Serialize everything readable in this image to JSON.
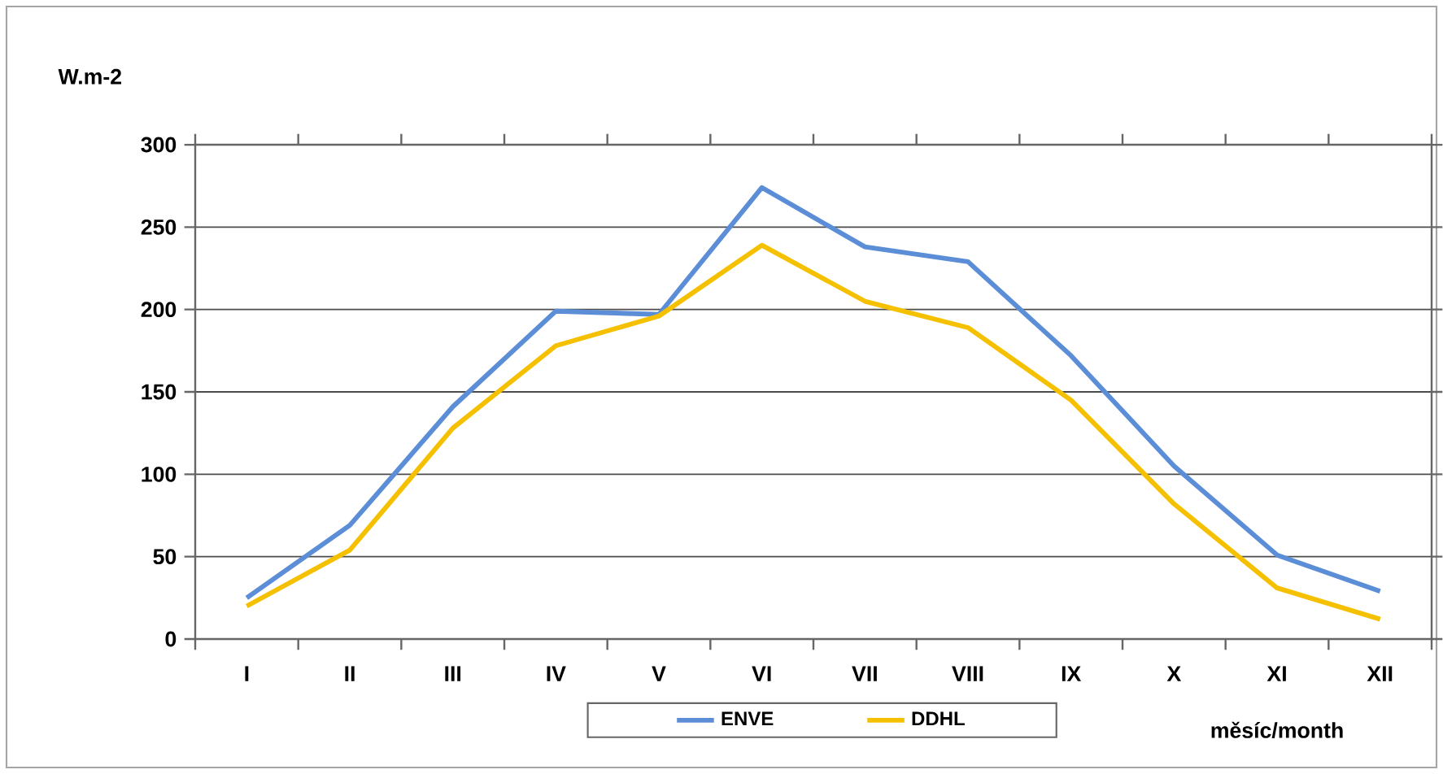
{
  "chart_data": {
    "type": "line",
    "ylabel": "W.m-2",
    "xlabel": "měsíc/month",
    "categories": [
      "I",
      "II",
      "III",
      "IV",
      "V",
      "VI",
      "VII",
      "VIII",
      "IX",
      "X",
      "XI",
      "XII"
    ],
    "series": [
      {
        "name": "ENVE",
        "color": "#5b8ed6",
        "values": [
          25,
          69,
          141,
          199,
          197,
          274,
          238,
          229,
          172,
          105,
          51,
          29
        ]
      },
      {
        "name": "DDHL",
        "color": "#f5c000",
        "values": [
          20,
          54,
          128,
          178,
          196,
          239,
          205,
          189,
          145,
          82,
          31,
          12
        ]
      }
    ],
    "ylim": [
      0,
      300
    ],
    "yticks": [
      0,
      50,
      100,
      150,
      200,
      250,
      300
    ],
    "grid": "y",
    "legend": "bottom"
  }
}
